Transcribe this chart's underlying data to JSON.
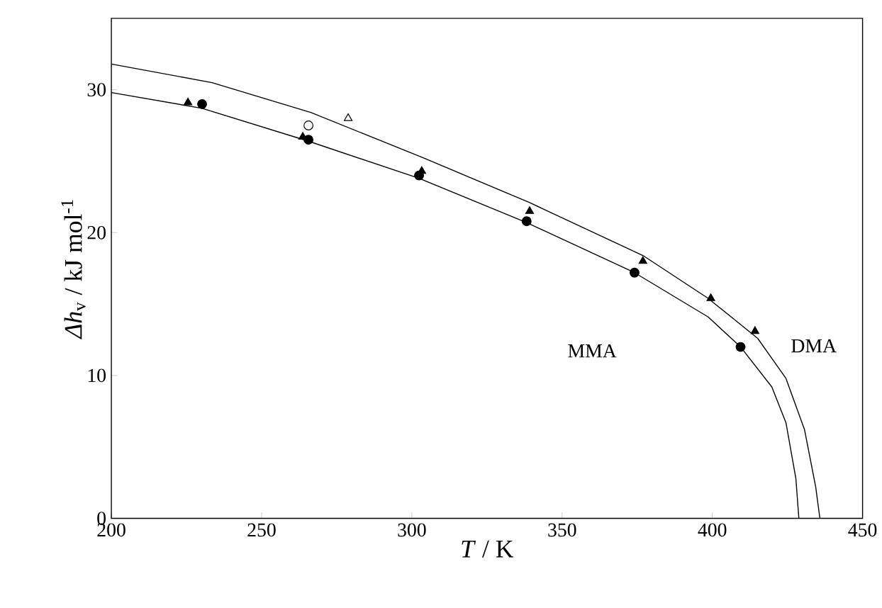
{
  "chart_data": {
    "type": "scatter",
    "xlabel": "*T* / K",
    "ylabel": "*Δh*$_{v}$ / kJ mol$^{-1}$",
    "xlim": [
      200,
      450
    ],
    "ylim": [
      0,
      35
    ],
    "xticks": [
      200,
      250,
      300,
      350,
      400,
      450
    ],
    "yticks": [
      0,
      10,
      20,
      30
    ],
    "grid": false,
    "series": [
      {
        "type": "line",
        "color": "#000000",
        "marker": "none",
        "x": [
          200,
          230.2,
          265.6,
          302.4,
          338.2,
          374.1,
          398.6,
          409.4,
          419.8,
          424.5,
          427.8,
          428.8
        ],
        "values": [
          29.8,
          28.7,
          26.4,
          23.8,
          20.7,
          17.2,
          14.1,
          12.0,
          9.2,
          6.7,
          2.8,
          0
        ]
      },
      {
        "type": "line",
        "color": "#000000",
        "marker": "none",
        "x": [
          200,
          233.5,
          266.5,
          304.2,
          339.2,
          376.9,
          398.6,
          415.1,
          424.5,
          430.7,
          434.4,
          435.8
        ],
        "values": [
          31.8,
          30.5,
          28.4,
          25.2,
          22.1,
          18.4,
          15.4,
          12.6,
          9.8,
          6.2,
          2.2,
          0
        ]
      },
      {
        "color": "#000000",
        "marker": "triangle",
        "x": [
          225.5,
          263.7,
          303.3,
          339.2,
          376.9,
          399.5,
          414.2
        ],
        "values": [
          29.1,
          26.7,
          24.3,
          21.5,
          18.0,
          15.4,
          13.1
        ]
      },
      {
        "color": "#000000",
        "marker": "circle",
        "x": [
          230.2,
          265.6,
          302.4,
          338.2,
          374.1,
          409.4
        ],
        "values": [
          29.0,
          26.5,
          24.0,
          20.8,
          17.2,
          12.0
        ]
      },
      {
        "color": "#ffffff",
        "marker": "circle",
        "x": [
          265.6
        ],
        "values": [
          27.5
        ]
      },
      {
        "color": "#ffffff",
        "marker": "triangle",
        "x": [
          278.8
        ],
        "values": [
          28.0
        ]
      }
    ],
    "annotations": [
      "MMA",
      "DMA"
    ]
  }
}
